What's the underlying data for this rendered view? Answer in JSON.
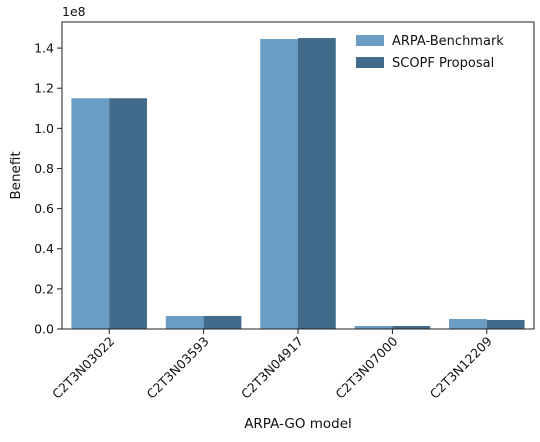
{
  "chart_data": {
    "type": "bar",
    "title": "",
    "xlabel": "ARPA-GO model",
    "ylabel": "Benefit",
    "y_offset_label": "1e8",
    "categories": [
      "C2T3N03022",
      "C2T3N03593",
      "C2T3N04917",
      "C2T3N07000",
      "C2T3N12209"
    ],
    "series": [
      {
        "name": "ARPA-Benchmark",
        "color": "#6b9cc3",
        "values": [
          115000000.0,
          6500000.0,
          144500000.0,
          1500000.0,
          5000000.0
        ]
      },
      {
        "name": "SCOPF Proposal",
        "color": "#416a8b",
        "values": [
          115000000.0,
          6500000.0,
          145000000.0,
          1500000.0,
          4500000.0
        ]
      }
    ],
    "yticks": [
      "0.0",
      "0.2",
      "0.4",
      "0.6",
      "0.8",
      "1.0",
      "1.2",
      "1.4"
    ],
    "ylim": [
      0,
      153000000.0
    ],
    "grid": false,
    "legend_position": "top-right"
  }
}
